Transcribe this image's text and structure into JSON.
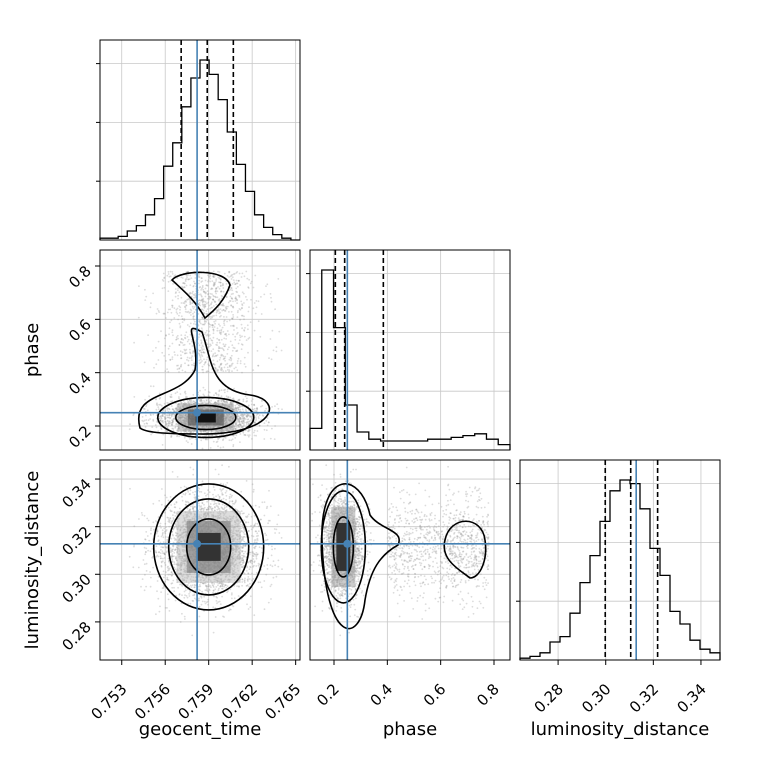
{
  "chart_data": {
    "type": "corner",
    "parameters": [
      "geocent_time",
      "phase",
      "luminosity_distance"
    ],
    "axis_labels": {
      "geocent_time": "geocent_time",
      "phase": "phase",
      "luminosity_distance": "luminosity_distance"
    },
    "ranges": {
      "geocent_time": [
        0.7515,
        0.7653
      ],
      "phase": [
        0.11,
        0.86
      ],
      "luminosity_distance": [
        0.264,
        0.348
      ]
    },
    "ticks": {
      "geocent_time": {
        "values": [
          0.753,
          0.756,
          0.759,
          0.762,
          0.765
        ],
        "labels": [
          "0.753",
          "0.756",
          "0.759",
          "0.762",
          "0.765"
        ]
      },
      "phase": {
        "values": [
          0.2,
          0.4,
          0.6,
          0.8
        ],
        "labels": [
          "0.2",
          "0.4",
          "0.6",
          "0.8"
        ]
      },
      "luminosity_distance": {
        "values": [
          0.28,
          0.3,
          0.32,
          0.34
        ],
        "labels": [
          "0.28",
          "0.30",
          "0.32",
          "0.34"
        ]
      }
    },
    "truths": {
      "geocent_time": 0.7582,
      "phase": 0.25,
      "luminosity_distance": 0.3128
    },
    "truth_color": "#4682b4",
    "quantiles": {
      "geocent_time": [
        0.7571,
        0.7589,
        0.7607
      ],
      "phase": [
        0.205,
        0.24,
        0.385
      ],
      "luminosity_distance": [
        0.2998,
        0.3105,
        0.3218
      ]
    },
    "histograms": {
      "geocent_time": [
        0.01,
        0.01,
        0.02,
        0.05,
        0.08,
        0.14,
        0.23,
        0.41,
        0.54,
        0.74,
        0.9,
        1.0,
        0.92,
        0.78,
        0.6,
        0.42,
        0.27,
        0.14,
        0.07,
        0.03,
        0.01,
        0.0
      ],
      "phase": [
        0.12,
        1.0,
        0.68,
        0.25,
        0.1,
        0.06,
        0.05,
        0.05,
        0.05,
        0.05,
        0.06,
        0.06,
        0.07,
        0.08,
        0.09,
        0.06,
        0.03
      ],
      "luminosity_distance": [
        0.01,
        0.02,
        0.04,
        0.1,
        0.13,
        0.26,
        0.43,
        0.58,
        0.77,
        0.94,
        1.0,
        0.98,
        0.84,
        0.62,
        0.47,
        0.27,
        0.2,
        0.11,
        0.06,
        0.04
      ]
    },
    "grid": true
  }
}
